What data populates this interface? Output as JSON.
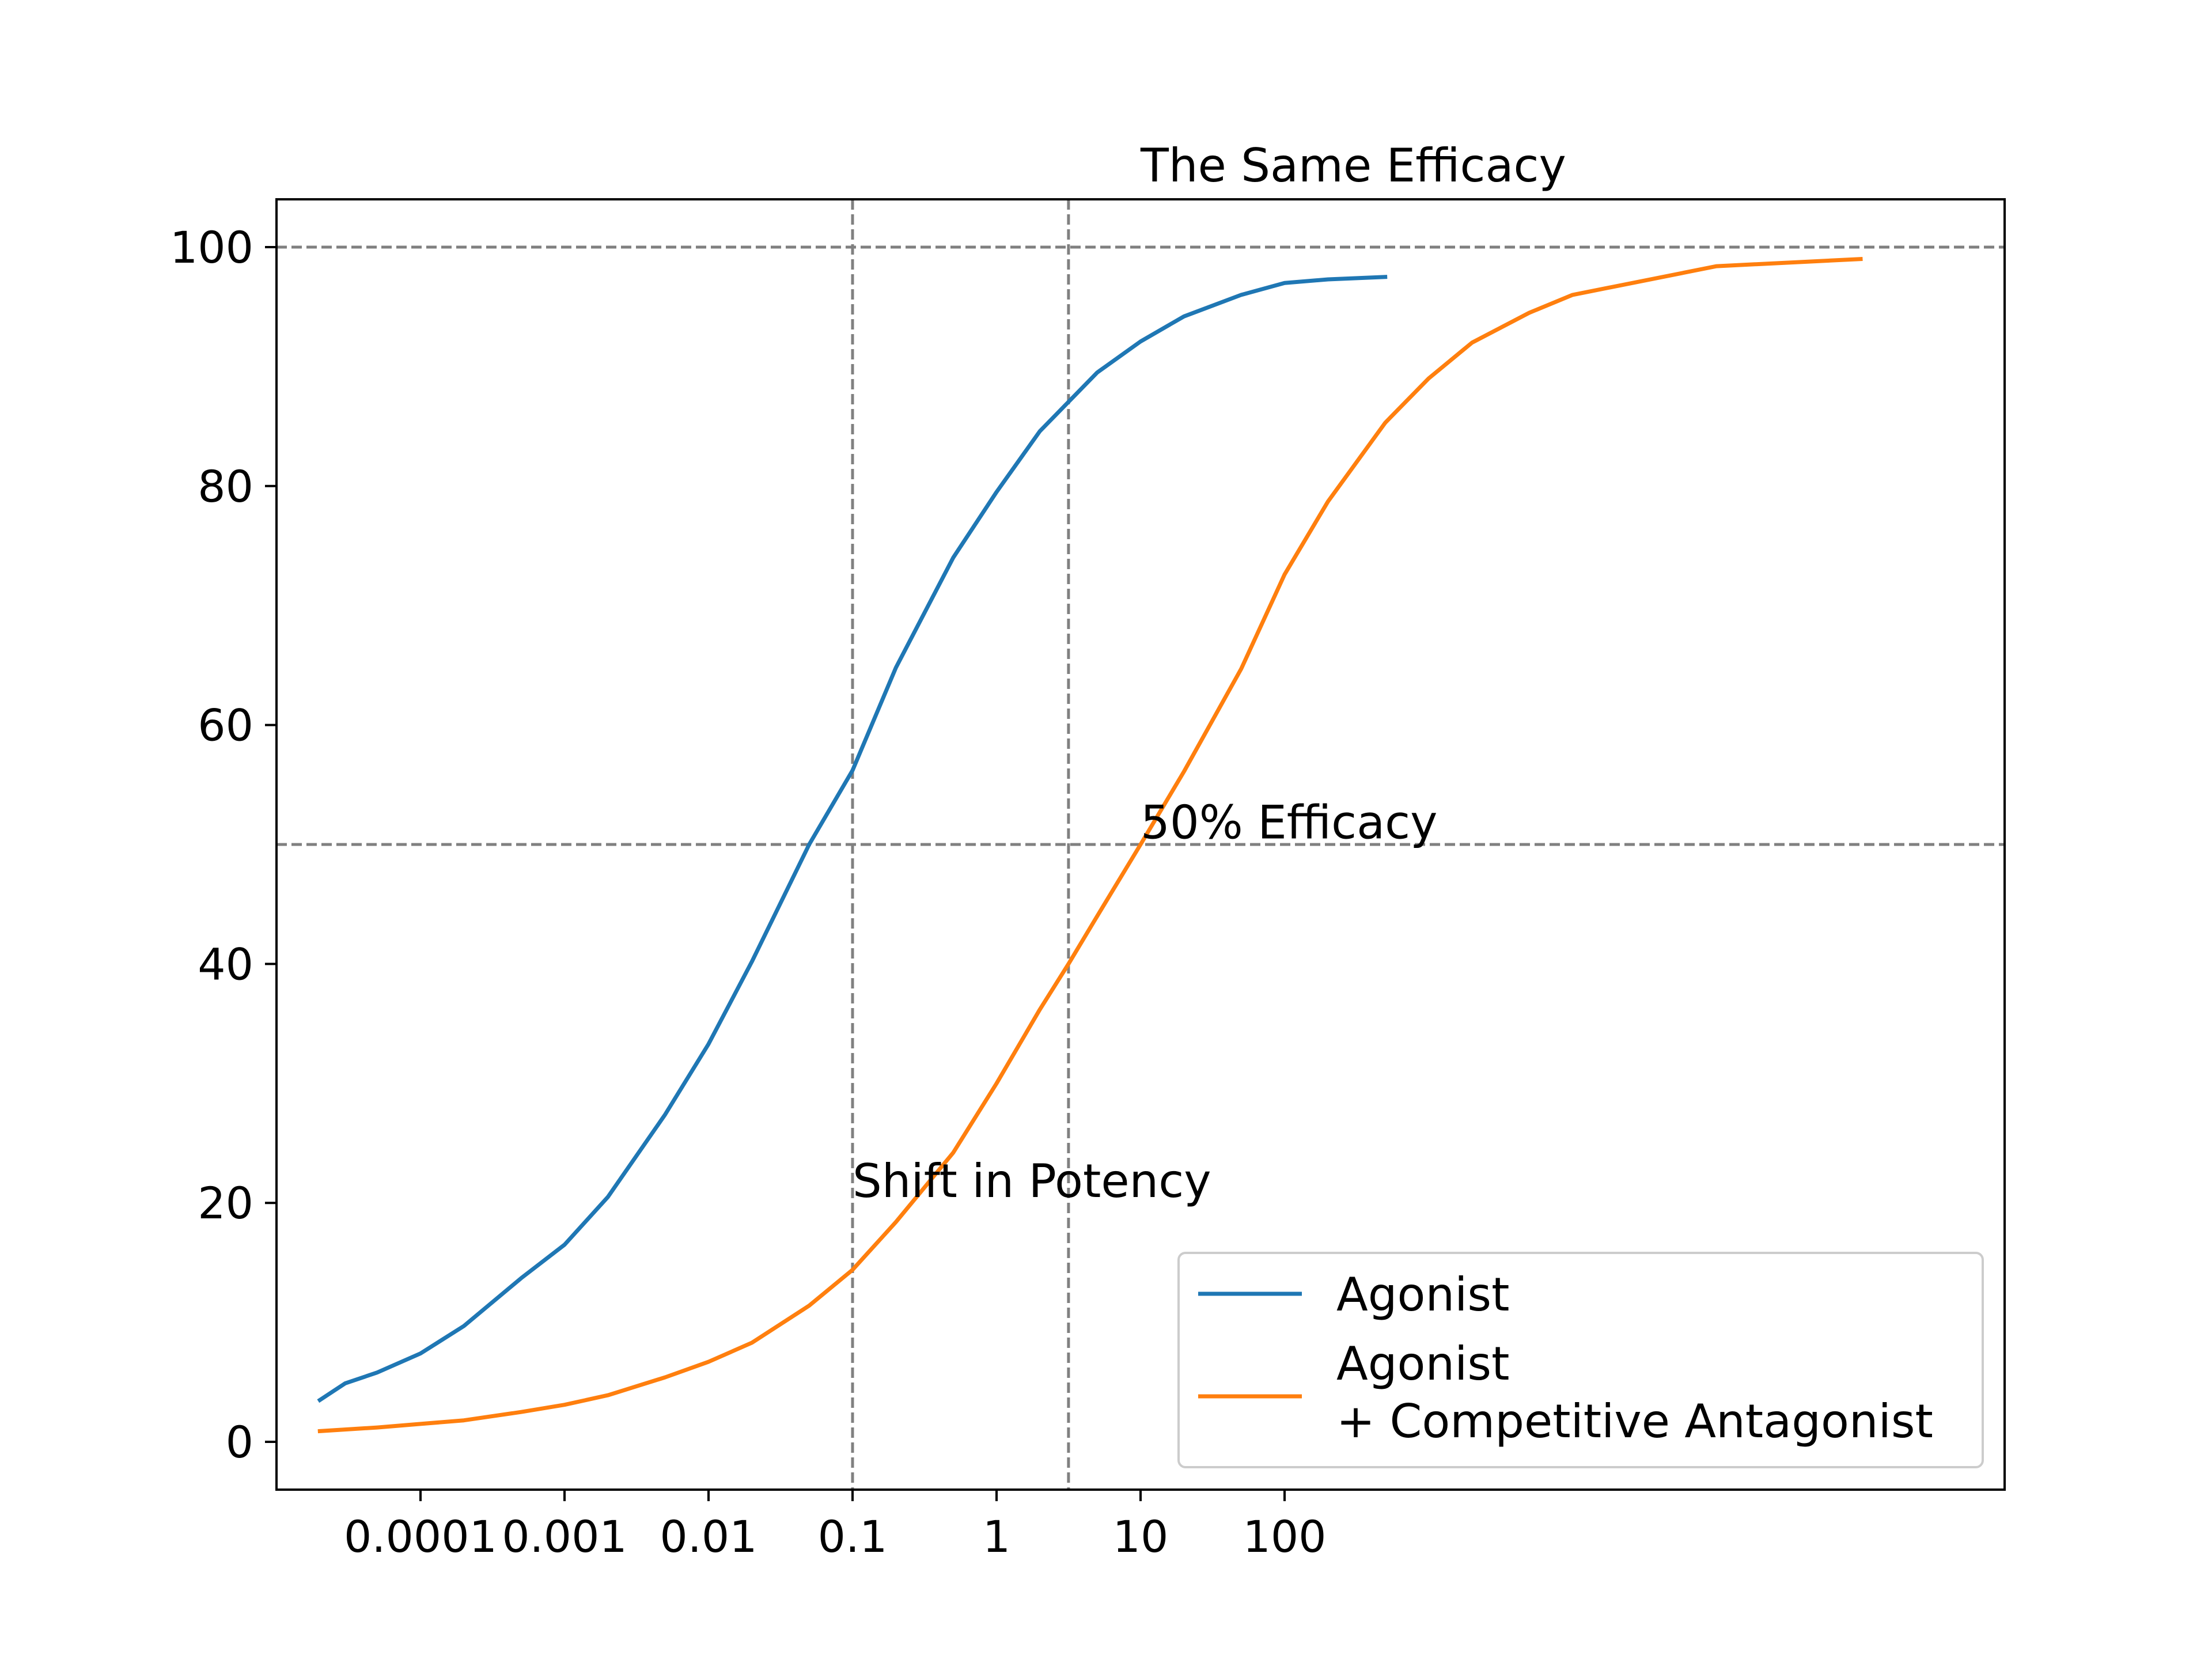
{
  "chart_data": {
    "type": "line",
    "xscale": "log",
    "xlim": [
      1e-05,
      10000000
    ],
    "ylim": [
      -4,
      104
    ],
    "xticks": [
      {
        "value": 0.0001,
        "label": "0.0001"
      },
      {
        "value": 0.001,
        "label": "0.001"
      },
      {
        "value": 0.01,
        "label": "0.01"
      },
      {
        "value": 0.1,
        "label": "0.1"
      },
      {
        "value": 1,
        "label": "1"
      },
      {
        "value": 10,
        "label": "10"
      },
      {
        "value": 100,
        "label": "100"
      }
    ],
    "yticks": [
      {
        "value": 0,
        "label": "0"
      },
      {
        "value": 20,
        "label": "20"
      },
      {
        "value": 40,
        "label": "40"
      },
      {
        "value": 60,
        "label": "60"
      },
      {
        "value": 80,
        "label": "80"
      },
      {
        "value": 100,
        "label": "100"
      }
    ],
    "series": [
      {
        "name": "Agonist",
        "color": "#1f77b4",
        "x": [
          2e-05,
          3e-05,
          5e-05,
          0.0001,
          0.0002,
          0.0005,
          0.001,
          0.002,
          0.005,
          0.01,
          0.02,
          0.05,
          0.1,
          0.2,
          0.5,
          1,
          2,
          5,
          10,
          20,
          50,
          100,
          200,
          500
        ],
        "y": [
          3.5,
          4.9,
          5.8,
          7.4,
          9.7,
          13.7,
          16.5,
          20.5,
          27.4,
          33.3,
          40.2,
          50.0,
          56.2,
          64.8,
          74.0,
          79.5,
          84.6,
          89.5,
          92.1,
          94.2,
          96.0,
          97.0,
          97.3,
          97.5
        ]
      },
      {
        "name": "Agonist\n+ Competitive Antagonist",
        "color": "#ff7f0e",
        "x": [
          2e-05,
          5e-05,
          0.0001,
          0.0002,
          0.0005,
          0.001,
          0.002,
          0.005,
          0.01,
          0.02,
          0.05,
          0.1,
          0.2,
          0.5,
          1,
          2,
          3.16,
          5,
          10,
          20,
          50,
          100,
          200,
          500,
          1000,
          2000,
          5000,
          10000,
          100000,
          1000000
        ],
        "y": [
          0.9,
          1.2,
          1.5,
          1.8,
          2.5,
          3.1,
          3.9,
          5.4,
          6.7,
          8.3,
          11.4,
          14.4,
          18.4,
          24.2,
          30.0,
          36.2,
          40.0,
          44.0,
          50.0,
          56.1,
          64.7,
          72.6,
          78.7,
          85.3,
          89.0,
          92.0,
          94.5,
          96.0,
          98.4,
          99.0
        ]
      }
    ],
    "reference_lines": [
      {
        "orientation": "horizontal",
        "value": 100
      },
      {
        "orientation": "horizontal",
        "value": 50
      },
      {
        "orientation": "vertical",
        "value": 0.1
      },
      {
        "orientation": "vertical",
        "value": 3.16
      }
    ],
    "annotations": [
      {
        "text": "The Same Efficacy",
        "x": 10,
        "y": 105.5
      },
      {
        "text": "50% Efficacy",
        "x": 10,
        "y": 50.5
      },
      {
        "text": "Shift in Potency",
        "x": 0.1,
        "y": 20.5
      }
    ],
    "legend": {
      "position": "lower-right",
      "entries": [
        "Agonist",
        "Agonist",
        "+ Competitive Antagonist"
      ]
    },
    "grid": false
  }
}
